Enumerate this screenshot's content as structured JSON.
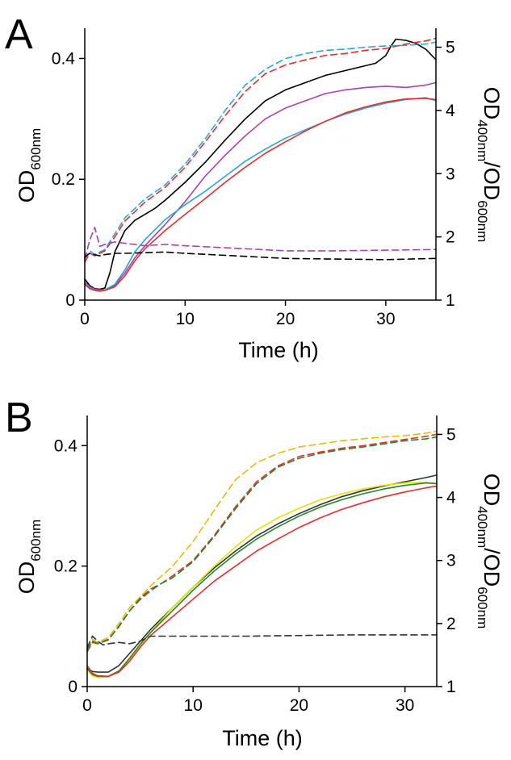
{
  "chart_data": [
    {
      "type": "line",
      "panel_label": "A",
      "xlabel": "Time (h)",
      "ylabel_main": "OD",
      "ylabel_sub": "600nm",
      "y2label_main1": "OD",
      "y2label_sub1": "400nm",
      "y2label_slash": "/OD",
      "y2label_sub2": "600nm",
      "xlim": [
        0,
        35
      ],
      "ylim": [
        0,
        0.45
      ],
      "y2lim": [
        1,
        5.3
      ],
      "xticks": [
        0,
        10,
        20,
        30
      ],
      "xtick_labels": [
        "0",
        "10",
        "20",
        "30"
      ],
      "yticks": [
        0,
        0.2,
        0.4
      ],
      "ytick_labels": [
        "0",
        "0.2",
        "0.4"
      ],
      "y2ticks": [
        1,
        2,
        3,
        4,
        5
      ],
      "y2tick_labels": [
        "1",
        "2",
        "3",
        "4",
        "5"
      ],
      "grid": false,
      "series": [
        {
          "color": "#000000",
          "style": "solid",
          "axis": "left",
          "x": [
            0,
            0.5,
            1,
            1.5,
            2,
            2.5,
            3,
            4,
            5,
            6,
            7,
            8,
            10,
            12,
            14,
            16,
            18,
            20,
            22,
            24,
            26,
            28,
            29,
            30,
            30.5,
            31,
            32,
            33,
            34,
            35
          ],
          "y": [
            0.035,
            0.024,
            0.019,
            0.018,
            0.02,
            0.045,
            0.08,
            0.115,
            0.132,
            0.142,
            0.152,
            0.165,
            0.195,
            0.228,
            0.265,
            0.3,
            0.33,
            0.348,
            0.36,
            0.372,
            0.38,
            0.388,
            0.392,
            0.405,
            0.42,
            0.432,
            0.43,
            0.425,
            0.415,
            0.398
          ]
        },
        {
          "color": "#ab3fb1",
          "style": "solid",
          "axis": "left",
          "x": [
            0,
            0.5,
            1,
            1.5,
            2,
            3,
            4,
            5,
            6,
            8,
            10,
            12,
            14,
            16,
            18,
            20,
            22,
            24,
            26,
            28,
            30,
            32,
            34,
            35
          ],
          "y": [
            0.03,
            0.022,
            0.018,
            0.017,
            0.017,
            0.024,
            0.045,
            0.07,
            0.09,
            0.125,
            0.163,
            0.205,
            0.24,
            0.272,
            0.3,
            0.318,
            0.33,
            0.342,
            0.348,
            0.352,
            0.354,
            0.352,
            0.356,
            0.36
          ]
        },
        {
          "color": "#21a9e1",
          "style": "solid",
          "axis": "left",
          "x": [
            0,
            0.5,
            1,
            1.5,
            2,
            3,
            4,
            5,
            6,
            8,
            10,
            12,
            14,
            16,
            18,
            20,
            22,
            24,
            26,
            28,
            30,
            32,
            34,
            35
          ],
          "y": [
            0.028,
            0.02,
            0.017,
            0.016,
            0.017,
            0.026,
            0.05,
            0.08,
            0.1,
            0.133,
            0.158,
            0.18,
            0.205,
            0.23,
            0.25,
            0.268,
            0.282,
            0.296,
            0.308,
            0.318,
            0.326,
            0.332,
            0.335,
            0.33
          ]
        },
        {
          "color": "#ee2b2b",
          "style": "solid",
          "axis": "left",
          "x": [
            0,
            0.5,
            1,
            1.5,
            2,
            3,
            4,
            5,
            6,
            8,
            10,
            12,
            14,
            16,
            18,
            20,
            22,
            24,
            26,
            28,
            30,
            32,
            34,
            35
          ],
          "y": [
            0.026,
            0.019,
            0.016,
            0.015,
            0.016,
            0.022,
            0.04,
            0.065,
            0.085,
            0.115,
            0.142,
            0.168,
            0.195,
            0.22,
            0.243,
            0.262,
            0.28,
            0.296,
            0.31,
            0.32,
            0.328,
            0.333,
            0.334,
            0.332
          ]
        },
        {
          "color": "#21a9e1",
          "style": "dashed",
          "axis": "right",
          "x": [
            0,
            0.5,
            1,
            2,
            3,
            4,
            5,
            6,
            8,
            10,
            12,
            14,
            16,
            18,
            20,
            22,
            24,
            26,
            28,
            30,
            32,
            34,
            35
          ],
          "y": [
            1.65,
            1.78,
            1.72,
            1.8,
            2.05,
            2.3,
            2.45,
            2.6,
            2.82,
            3.15,
            3.55,
            4.0,
            4.4,
            4.65,
            4.82,
            4.9,
            4.95,
            4.97,
            5.0,
            5.02,
            5.03,
            5.05,
            5.08
          ]
        },
        {
          "color": "#ee2b2b",
          "style": "dashed",
          "axis": "right",
          "x": [
            0,
            0.5,
            1,
            2,
            3,
            4,
            5,
            6,
            8,
            10,
            12,
            14,
            16,
            18,
            20,
            22,
            24,
            26,
            28,
            30,
            32,
            34,
            35
          ],
          "y": [
            1.6,
            1.74,
            1.7,
            1.78,
            2.0,
            2.25,
            2.4,
            2.55,
            2.78,
            3.1,
            3.5,
            3.92,
            4.3,
            4.58,
            4.72,
            4.8,
            4.87,
            4.9,
            4.95,
            4.98,
            5.05,
            5.1,
            5.14
          ]
        },
        {
          "color": "#ab3fb1",
          "style": "dashed",
          "axis": "right",
          "x": [
            0,
            0.5,
            1,
            1.5,
            2,
            3,
            4,
            5,
            6,
            8,
            10,
            15,
            20,
            25,
            30,
            35
          ],
          "y": [
            1.65,
            1.95,
            2.15,
            1.85,
            1.88,
            1.92,
            1.9,
            1.88,
            1.86,
            1.88,
            1.86,
            1.82,
            1.78,
            1.78,
            1.79,
            1.8
          ]
        },
        {
          "color": "#000000",
          "style": "dashed",
          "axis": "right",
          "x": [
            0,
            0.5,
            1,
            1.5,
            2,
            3,
            4,
            6,
            8,
            10,
            15,
            20,
            25,
            30,
            35
          ],
          "y": [
            1.68,
            1.74,
            1.72,
            1.7,
            1.72,
            1.74,
            1.74,
            1.75,
            1.76,
            1.74,
            1.7,
            1.66,
            1.65,
            1.64,
            1.66
          ]
        }
      ]
    },
    {
      "type": "line",
      "panel_label": "B",
      "xlabel": "Time (h)",
      "ylabel_main": "OD",
      "ylabel_sub": "600nm",
      "y2label_main1": "OD",
      "y2label_sub1": "400nm",
      "y2label_slash": "/OD",
      "y2label_sub2": "600nm",
      "xlim": [
        0,
        33
      ],
      "ylim": [
        0,
        0.45
      ],
      "y2lim": [
        1,
        5.3
      ],
      "xticks": [
        0,
        10,
        20,
        30
      ],
      "xtick_labels": [
        "0",
        "10",
        "20",
        "30"
      ],
      "yticks": [
        0,
        0.2,
        0.4
      ],
      "ytick_labels": [
        "0",
        "0.2",
        "0.4"
      ],
      "y2ticks": [
        1,
        2,
        3,
        4,
        5
      ],
      "y2tick_labels": [
        "1",
        "2",
        "3",
        "4",
        "5"
      ],
      "grid": false,
      "series": [
        {
          "color": "#333333",
          "style": "solid",
          "axis": "left",
          "x": [
            0,
            0.5,
            1,
            2,
            3,
            4,
            5,
            6,
            8,
            10,
            12,
            14,
            16,
            18,
            20,
            22,
            24,
            26,
            28,
            30,
            32,
            33
          ],
          "y": [
            0.03,
            0.025,
            0.024,
            0.024,
            0.035,
            0.055,
            0.075,
            0.095,
            0.13,
            0.165,
            0.197,
            0.225,
            0.25,
            0.27,
            0.287,
            0.302,
            0.315,
            0.325,
            0.333,
            0.34,
            0.347,
            0.351
          ]
        },
        {
          "color": "#e3e300",
          "style": "solid",
          "axis": "left",
          "x": [
            0,
            0.5,
            1,
            2,
            3,
            4,
            5,
            6,
            8,
            10,
            12,
            14,
            16,
            18,
            20,
            22,
            24,
            26,
            28,
            30,
            32,
            33
          ],
          "y": [
            0.028,
            0.018,
            0.015,
            0.016,
            0.025,
            0.045,
            0.068,
            0.09,
            0.13,
            0.165,
            0.2,
            0.232,
            0.26,
            0.28,
            0.296,
            0.31,
            0.32,
            0.328,
            0.334,
            0.338,
            0.339,
            0.337
          ]
        },
        {
          "color": "#1f8a1f",
          "style": "solid",
          "axis": "left",
          "x": [
            0,
            0.5,
            1,
            2,
            3,
            4,
            5,
            6,
            8,
            10,
            12,
            14,
            16,
            18,
            20,
            22,
            24,
            26,
            28,
            30,
            32,
            33
          ],
          "y": [
            0.03,
            0.02,
            0.017,
            0.017,
            0.026,
            0.047,
            0.07,
            0.09,
            0.125,
            0.16,
            0.192,
            0.22,
            0.245,
            0.265,
            0.283,
            0.298,
            0.31,
            0.32,
            0.328,
            0.334,
            0.338,
            0.337
          ]
        },
        {
          "color": "#ee2b2b",
          "style": "solid",
          "axis": "left",
          "x": [
            0,
            0.5,
            1,
            2,
            3,
            4,
            5,
            6,
            8,
            10,
            12,
            14,
            16,
            18,
            20,
            22,
            24,
            26,
            28,
            30,
            32,
            33
          ],
          "y": [
            0.035,
            0.022,
            0.018,
            0.017,
            0.024,
            0.042,
            0.065,
            0.085,
            0.115,
            0.145,
            0.175,
            0.2,
            0.225,
            0.245,
            0.264,
            0.28,
            0.294,
            0.305,
            0.315,
            0.323,
            0.33,
            0.333
          ]
        },
        {
          "color": "#f0b800",
          "style": "dashed",
          "axis": "right",
          "x": [
            0,
            0.5,
            1,
            2,
            3,
            4,
            5,
            6,
            8,
            10,
            12,
            14,
            16,
            18,
            20,
            22,
            24,
            26,
            28,
            30,
            32,
            33
          ],
          "y": [
            1.6,
            1.75,
            1.7,
            1.78,
            2.0,
            2.25,
            2.42,
            2.6,
            2.9,
            3.3,
            3.8,
            4.28,
            4.55,
            4.7,
            4.8,
            4.85,
            4.9,
            4.93,
            4.96,
            4.98,
            5.02,
            5.05
          ]
        },
        {
          "color": "#ee2b2b",
          "style": "dashed",
          "axis": "right",
          "x": [
            0,
            0.5,
            1,
            2,
            3,
            4,
            5,
            6,
            8,
            10,
            12,
            14,
            16,
            18,
            20,
            22,
            24,
            26,
            28,
            30,
            32,
            33
          ],
          "y": [
            1.55,
            1.7,
            1.68,
            1.75,
            1.95,
            2.2,
            2.38,
            2.52,
            2.75,
            3.0,
            3.4,
            3.85,
            4.25,
            4.5,
            4.65,
            4.72,
            4.78,
            4.82,
            4.87,
            4.92,
            4.97,
            5.0
          ]
        },
        {
          "color": "#1f8a1f",
          "style": "dashed",
          "axis": "right",
          "x": [
            0,
            0.5,
            1,
            2,
            3,
            4,
            5,
            6,
            8,
            10,
            12,
            14,
            16,
            18,
            20,
            22,
            24,
            26,
            28,
            30,
            32,
            33
          ],
          "y": [
            1.58,
            1.72,
            1.68,
            1.74,
            1.96,
            2.2,
            2.4,
            2.55,
            2.72,
            2.98,
            3.38,
            3.82,
            4.22,
            4.48,
            4.62,
            4.7,
            4.76,
            4.8,
            4.85,
            4.9,
            4.93,
            4.96
          ]
        },
        {
          "color": "#333333",
          "style": "dashed",
          "axis": "right",
          "x": [
            0,
            0.5,
            1,
            1.5,
            2,
            3,
            4,
            5,
            6,
            8,
            10,
            15,
            20,
            25,
            30,
            33
          ],
          "y": [
            1.62,
            1.8,
            1.72,
            1.66,
            1.68,
            1.7,
            1.68,
            1.72,
            1.8,
            1.8,
            1.8,
            1.8,
            1.81,
            1.82,
            1.82,
            1.82
          ]
        }
      ]
    }
  ]
}
